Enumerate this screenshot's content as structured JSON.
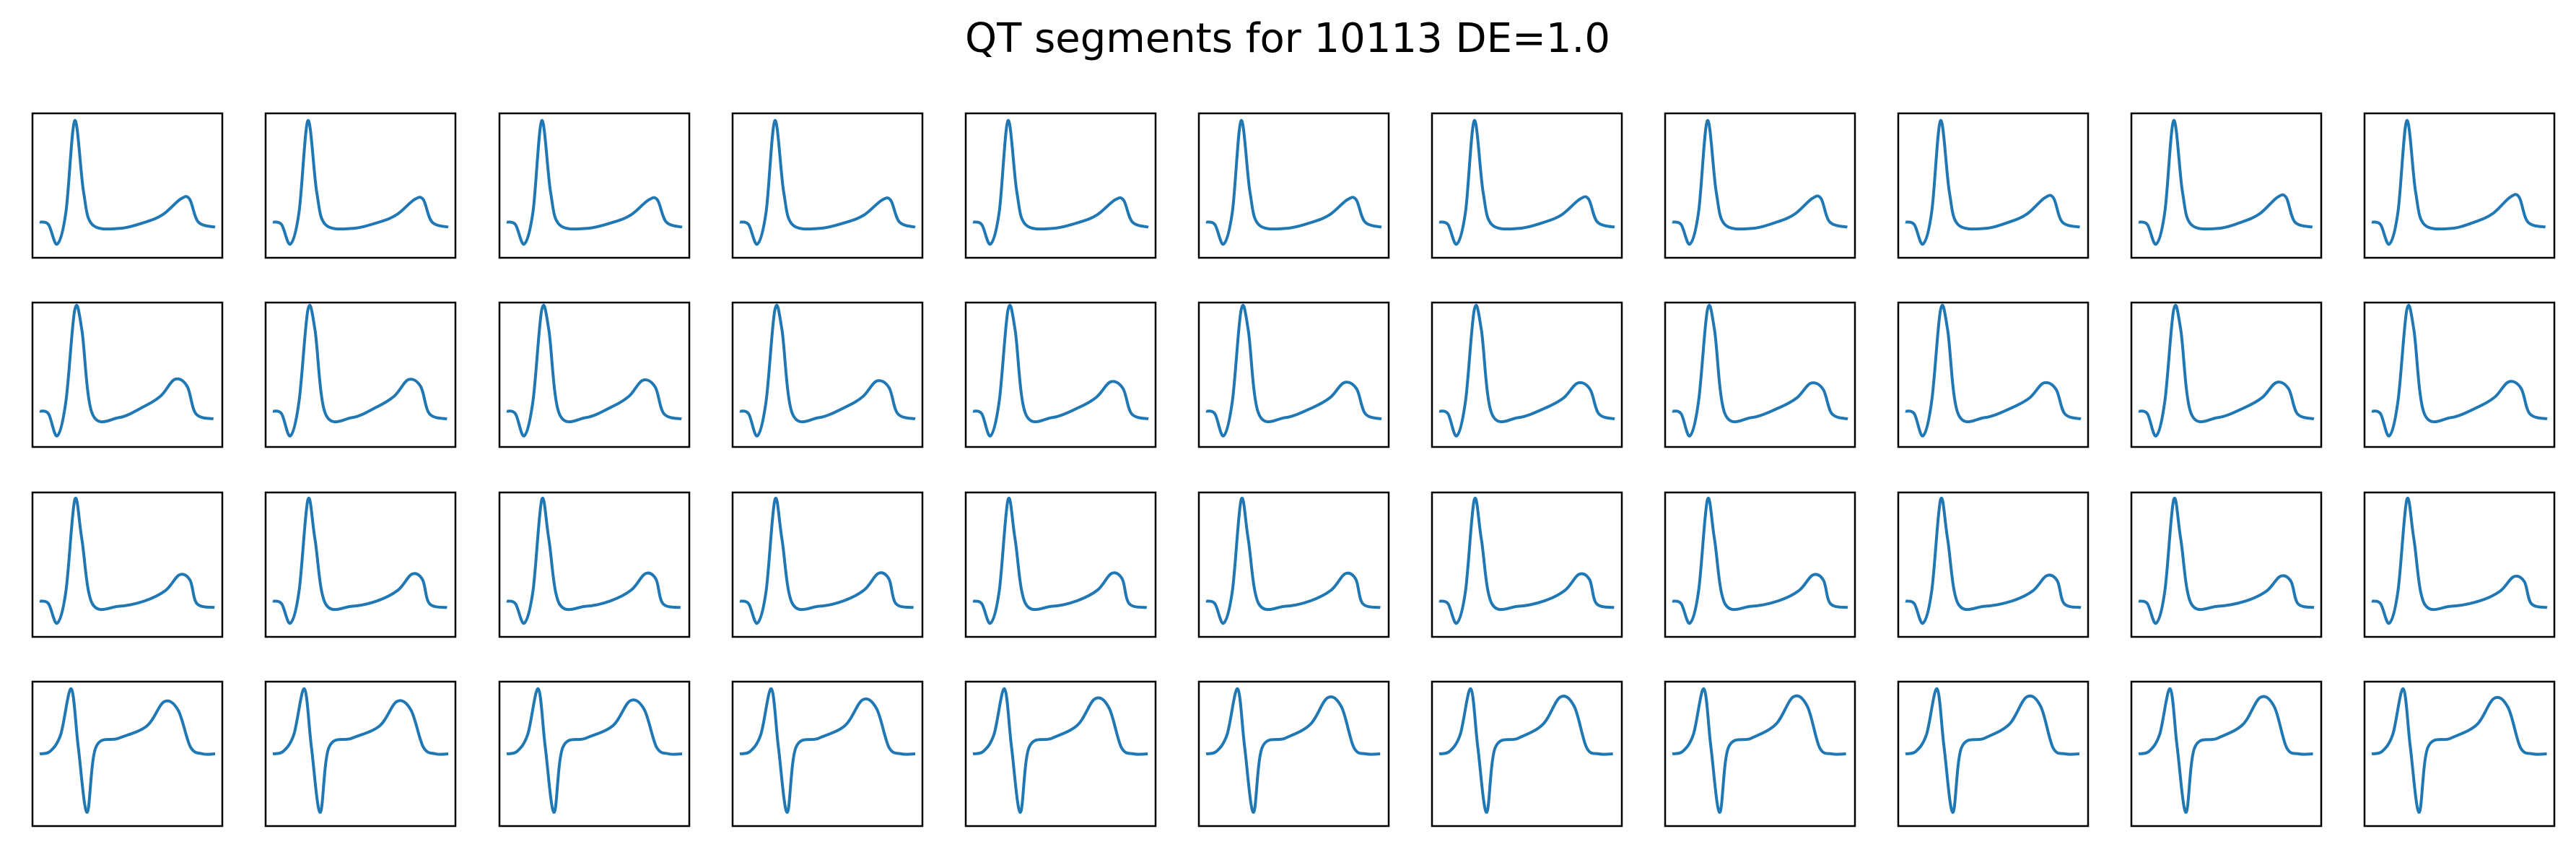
{
  "chart_data": {
    "type": "line",
    "title": "QT segments for 10113 DE=1.0",
    "grid_rows": 4,
    "grid_cols": 11,
    "axes_ticks": false,
    "grid": false,
    "line_color": "#1f77b4",
    "frame_color": "#000000",
    "xlabel": "",
    "ylabel": "",
    "row_waveforms": [
      {
        "row": 1,
        "description_points": [
          [
            0.0,
            0.22
          ],
          [
            0.05,
            0.2
          ],
          [
            0.1,
            0.05
          ],
          [
            0.15,
            0.3
          ],
          [
            0.2,
            1.0
          ],
          [
            0.25,
            0.45
          ],
          [
            0.3,
            0.2
          ],
          [
            0.45,
            0.17
          ],
          [
            0.6,
            0.22
          ],
          [
            0.7,
            0.28
          ],
          [
            0.8,
            0.4
          ],
          [
            0.85,
            0.4
          ],
          [
            0.9,
            0.22
          ],
          [
            1.0,
            0.18
          ]
        ]
      },
      {
        "row": 2,
        "description_points": [
          [
            0.0,
            0.22
          ],
          [
            0.05,
            0.2
          ],
          [
            0.1,
            0.03
          ],
          [
            0.15,
            0.3
          ],
          [
            0.2,
            1.0
          ],
          [
            0.24,
            0.85
          ],
          [
            0.3,
            0.2
          ],
          [
            0.45,
            0.17
          ],
          [
            0.6,
            0.25
          ],
          [
            0.7,
            0.33
          ],
          [
            0.78,
            0.45
          ],
          [
            0.85,
            0.4
          ],
          [
            0.9,
            0.2
          ],
          [
            1.0,
            0.16
          ]
        ]
      },
      {
        "row": 3,
        "description_points": [
          [
            0.0,
            0.22
          ],
          [
            0.05,
            0.2
          ],
          [
            0.1,
            0.05
          ],
          [
            0.15,
            0.3
          ],
          [
            0.2,
            1.0
          ],
          [
            0.24,
            0.7
          ],
          [
            0.3,
            0.2
          ],
          [
            0.45,
            0.18
          ],
          [
            0.6,
            0.22
          ],
          [
            0.72,
            0.3
          ],
          [
            0.8,
            0.42
          ],
          [
            0.86,
            0.38
          ],
          [
            0.9,
            0.2
          ],
          [
            1.0,
            0.17
          ]
        ]
      },
      {
        "row": 4,
        "description_points": [
          [
            0.0,
            0.5
          ],
          [
            0.06,
            0.52
          ],
          [
            0.12,
            0.65
          ],
          [
            0.18,
            1.0
          ],
          [
            0.22,
            0.55
          ],
          [
            0.27,
            0.05
          ],
          [
            0.32,
            0.55
          ],
          [
            0.45,
            0.62
          ],
          [
            0.6,
            0.72
          ],
          [
            0.7,
            0.92
          ],
          [
            0.78,
            0.85
          ],
          [
            0.85,
            0.55
          ],
          [
            0.92,
            0.5
          ],
          [
            1.0,
            0.5
          ]
        ]
      }
    ]
  }
}
